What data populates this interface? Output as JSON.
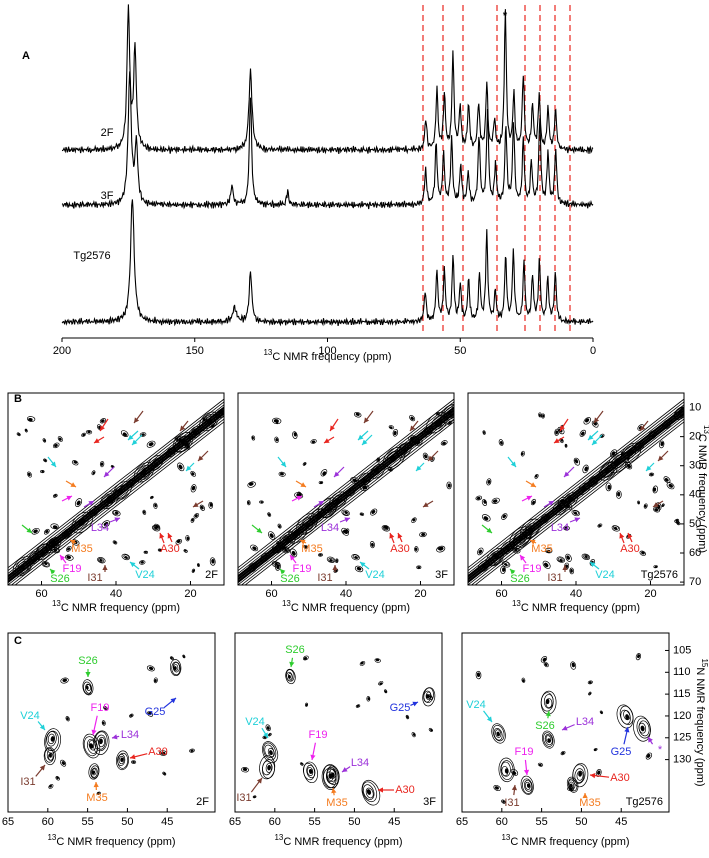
{
  "panel_a": {
    "label": "A",
    "spectra": [
      "2F",
      "3F",
      "Tg2576"
    ],
    "marker": "*",
    "xlim": [
      200,
      0
    ],
    "xticks": [
      200,
      150,
      100,
      50,
      0
    ],
    "axis_label": {
      "sup": "13",
      "text": "C NMR frequency (ppm)"
    }
  },
  "panel_b": {
    "label": "B",
    "xlim": [
      69,
      11
    ],
    "ylim": [
      5,
      71
    ],
    "xticks": [
      60,
      40,
      20
    ],
    "yticks": [
      10,
      20,
      30,
      40,
      50,
      60,
      70
    ],
    "axis_label": {
      "sup": "13",
      "text": "C NMR frequency (ppm)"
    },
    "y_axis_label": {
      "sup": "13",
      "text": "C NMR frequency (ppm)"
    },
    "spectra": [
      {
        "name": "2F",
        "annotations": [
          "L34",
          "M35",
          "A30",
          "F19",
          "I31",
          "V24",
          "S26"
        ]
      },
      {
        "name": "3F",
        "annotations": [
          "L34",
          "M35",
          "A30",
          "F19",
          "I31",
          "V24",
          "S26"
        ]
      },
      {
        "name": "Tg2576",
        "annotations": [
          "L34",
          "M35",
          "A30",
          "F19",
          "I31",
          "V24",
          "S26"
        ]
      }
    ]
  },
  "panel_c": {
    "label": "C",
    "xlim": [
      65,
      39
    ],
    "ylim": [
      101,
      142
    ],
    "xticks": [
      65,
      60,
      55,
      50,
      45
    ],
    "yticks": [
      105,
      110,
      115,
      120,
      125,
      130
    ],
    "axis_label": {
      "sup": "13",
      "text": "C NMR frequency (ppm)"
    },
    "y_axis_label": {
      "sup": "15",
      "text": "N NMR frequency (ppm)"
    },
    "spectra": [
      {
        "name": "2F",
        "annotations": [
          "S26",
          "G25",
          "V24",
          "F19",
          "L34",
          "A30",
          "I31",
          "M35"
        ]
      },
      {
        "name": "3F",
        "annotations": [
          "S26",
          "G25",
          "V24",
          "F19",
          "L34",
          "A30",
          "I31",
          "M35"
        ]
      },
      {
        "name": "Tg2576",
        "annotations": [
          "V24",
          "S26",
          "L34",
          "G25",
          "*",
          "F19",
          "A30",
          "I31",
          "M35"
        ]
      }
    ]
  },
  "residue_colors": {
    "L34": "#9b30d9",
    "M35": "#f47c20",
    "A30": "#e8251f",
    "F19": "#ee22ee",
    "I31": "#7a3b2e",
    "V24": "#1fd0d8",
    "S26": "#2ecc2e",
    "G25": "#2233dd",
    "*": "#9b30d9"
  }
}
